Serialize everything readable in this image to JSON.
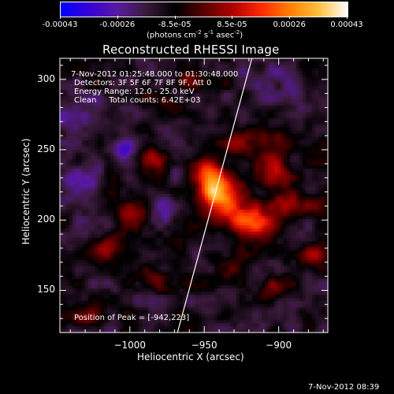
{
  "colorbar": {
    "ticks": [
      "-0.00043",
      "-0.00026",
      "-8.5e-05",
      "8.5e-05",
      "0.00026",
      "0.00043"
    ],
    "units_prefix": "(photons cm",
    "units_exp1": "-2",
    "units_mid": " s",
    "units_exp2": "-1",
    "units_mid2": " asec",
    "units_exp3": "-2",
    "units_suffix": ")",
    "colors": [
      "#0000ff",
      "#3a00d8",
      "#5a1aa0",
      "#3a1a3a",
      "#000000",
      "#5a0000",
      "#b00000",
      "#ff2a00",
      "#ff8000",
      "#ffc040",
      "#ffffff"
    ]
  },
  "title": "Reconstructed RHESSI Image",
  "info": {
    "time_range": "7-Nov-2012 01:25:48.000 to 01:30:48.000",
    "detectors": "Detectors: 3F 5F 6F 7F 8F 9F, Att 0",
    "energy": "Energy Range: 12.0 - 25.0 keV",
    "clean": "Clean     Total counts: 6.42E+03",
    "peak": "Position of Peak = [-942,223]"
  },
  "timestamp": "7-Nov-2012 08:39",
  "chart_data": {
    "type": "heatmap",
    "title": "Reconstructed RHESSI Image",
    "xlabel": "Heliocentric X (arcsec)",
    "ylabel": "Heliocentric Y (arcsec)",
    "xlim": [
      -1047,
      -867
    ],
    "ylim": [
      120,
      315
    ],
    "x_ticks": [
      -1000,
      -950,
      -900
    ],
    "y_ticks": [
      150,
      200,
      250,
      300
    ],
    "x_tick_labels": [
      "−1000",
      "−950",
      "−900"
    ],
    "y_tick_labels": [
      "150",
      "200",
      "250",
      "300"
    ],
    "colorbar_range": [
      -0.00043,
      0.00043
    ],
    "peak": {
      "x": -942,
      "y": 223
    },
    "limb_line": [
      [
        -968,
        120
      ],
      [
        -918,
        315
      ]
    ],
    "sources": [
      {
        "x": -942,
        "y": 222,
        "amp": 1.0,
        "sigma": 9
      },
      {
        "x": -950,
        "y": 235,
        "amp": 0.55,
        "sigma": 7
      },
      {
        "x": -930,
        "y": 205,
        "amp": 0.6,
        "sigma": 10
      },
      {
        "x": -915,
        "y": 195,
        "amp": 0.55,
        "sigma": 9
      },
      {
        "x": -905,
        "y": 232,
        "amp": 0.5,
        "sigma": 8
      },
      {
        "x": -895,
        "y": 212,
        "amp": 0.45,
        "sigma": 7
      },
      {
        "x": -902,
        "y": 255,
        "amp": 0.4,
        "sigma": 7
      },
      {
        "x": -925,
        "y": 255,
        "amp": 0.45,
        "sigma": 7
      },
      {
        "x": -985,
        "y": 245,
        "amp": 0.45,
        "sigma": 6
      },
      {
        "x": -1000,
        "y": 205,
        "amp": 0.45,
        "sigma": 7
      },
      {
        "x": -1018,
        "y": 180,
        "amp": 0.35,
        "sigma": 6
      },
      {
        "x": -970,
        "y": 280,
        "amp": 0.35,
        "sigma": 6
      },
      {
        "x": -985,
        "y": 160,
        "amp": 0.35,
        "sigma": 7
      },
      {
        "x": -1030,
        "y": 130,
        "amp": 0.3,
        "sigma": 6
      },
      {
        "x": -960,
        "y": 300,
        "amp": 0.3,
        "sigma": 6
      },
      {
        "x": -875,
        "y": 175,
        "amp": 0.35,
        "sigma": 6
      },
      {
        "x": -880,
        "y": 210,
        "amp": 0.4,
        "sigma": 6
      },
      {
        "x": -930,
        "y": 165,
        "amp": 0.3,
        "sigma": 7
      },
      {
        "x": -905,
        "y": 150,
        "amp": 0.3,
        "sigma": 6
      },
      {
        "x": -1035,
        "y": 225,
        "amp": -0.35,
        "sigma": 9
      },
      {
        "x": -1040,
        "y": 270,
        "amp": -0.3,
        "sigma": 9
      },
      {
        "x": -975,
        "y": 210,
        "amp": -0.3,
        "sigma": 8
      },
      {
        "x": -1005,
        "y": 250,
        "amp": -0.4,
        "sigma": 5
      },
      {
        "x": -905,
        "y": 300,
        "amp": -0.25,
        "sigma": 8
      },
      {
        "x": -880,
        "y": 285,
        "amp": -0.2,
        "sigma": 8
      }
    ]
  }
}
